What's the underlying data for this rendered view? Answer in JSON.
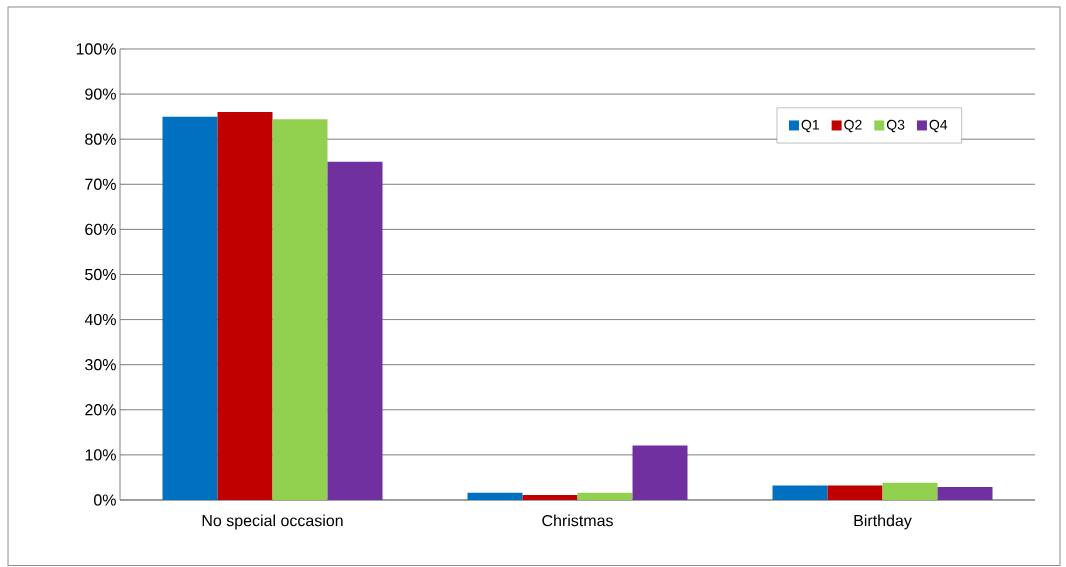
{
  "chart_data": {
    "type": "bar",
    "categories": [
      "No special occasion",
      "Christmas",
      "Birthday"
    ],
    "series": [
      {
        "name": "Q1",
        "color": "#0070c0",
        "values": [
          85,
          1.6,
          3.2
        ]
      },
      {
        "name": "Q2",
        "color": "#c00000",
        "values": [
          86,
          1.1,
          3.2
        ]
      },
      {
        "name": "Q3",
        "color": "#92d050",
        "values": [
          84.4,
          1.6,
          3.8
        ]
      },
      {
        "name": "Q4",
        "color": "#7030a0",
        "values": [
          75,
          12.1,
          2.9
        ]
      }
    ],
    "ylim": [
      0,
      100
    ],
    "yticks": [
      {
        "value": 0,
        "label": "0%"
      },
      {
        "value": 10,
        "label": "10%"
      },
      {
        "value": 20,
        "label": "20%"
      },
      {
        "value": 30,
        "label": "30%"
      },
      {
        "value": 40,
        "label": "40%"
      },
      {
        "value": 50,
        "label": "50%"
      },
      {
        "value": 60,
        "label": "60%"
      },
      {
        "value": 70,
        "label": "70%"
      },
      {
        "value": 80,
        "label": "80%"
      },
      {
        "value": 90,
        "label": "90%"
      },
      {
        "value": 100,
        "label": "100%"
      }
    ],
    "grid": "y",
    "legend": "top right"
  }
}
